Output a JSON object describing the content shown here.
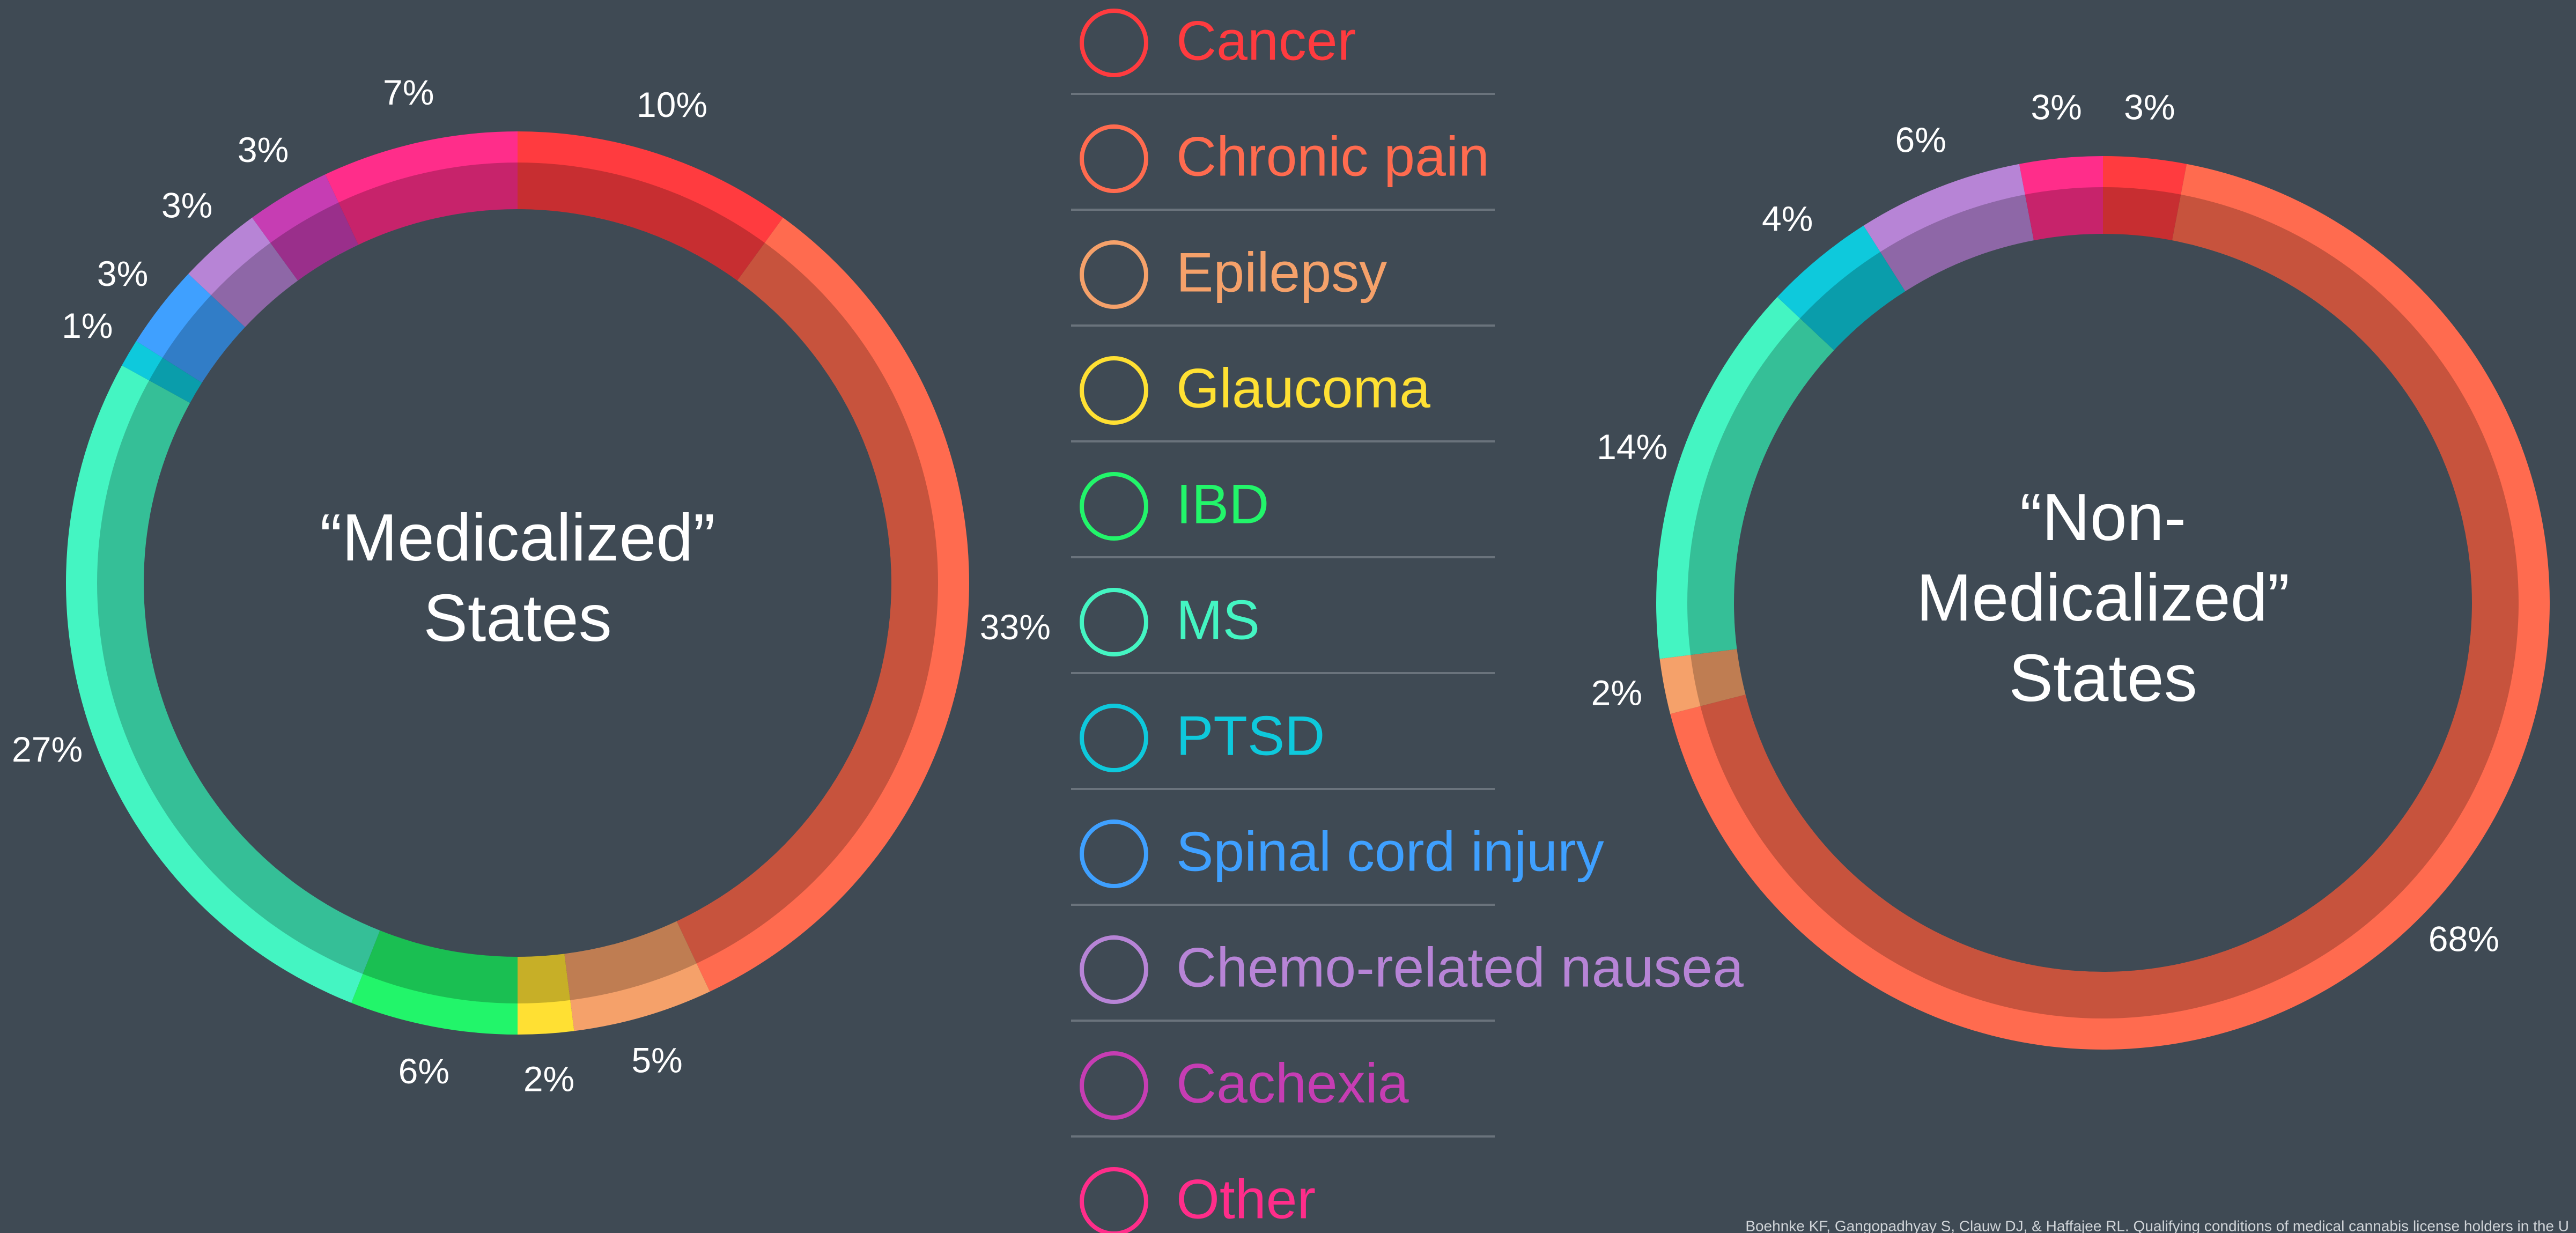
{
  "legend": {
    "categories": [
      "Cancer",
      "Chronic pain",
      "Epilepsy",
      "Glaucoma",
      "IBD",
      "MS",
      "PTSD",
      "Spinal cord injury",
      "Chemo-related nausea",
      "Cachexia",
      "Other"
    ],
    "colors": [
      "#ff3b3f",
      "#ff6b4f",
      "#f5a16a",
      "#ffe033",
      "#22f56a",
      "#44f5c2",
      "#0ec9dc",
      "#3fa0ff",
      "#b784d6",
      "#c63db3",
      "#ff2d8a"
    ]
  },
  "chart_data": [
    {
      "type": "donut",
      "title": [
        "“Medicalized”",
        "States"
      ],
      "values": [
        10,
        33,
        5,
        2,
        6,
        27,
        1,
        3,
        3,
        3,
        7
      ],
      "value_labels": [
        "10%",
        "33%",
        "5%",
        "2%",
        "6%",
        "27%",
        "1%",
        "3%",
        "3%",
        "3%",
        "7%"
      ]
    },
    {
      "type": "donut",
      "title": [
        "“Non-",
        "Medicalized”",
        "States"
      ],
      "values": [
        3,
        68,
        2,
        null,
        null,
        14,
        4,
        null,
        6,
        null,
        3
      ],
      "value_labels": [
        "3%",
        "68%",
        "2%",
        null,
        null,
        "14%",
        "4%",
        null,
        "6%",
        null,
        "3%"
      ]
    }
  ],
  "source": "Boehnke KF, Gangopadhyay S, Clauw DJ, & Haffajee RL. Qualifying conditions of medical cannabis license holders in the U"
}
